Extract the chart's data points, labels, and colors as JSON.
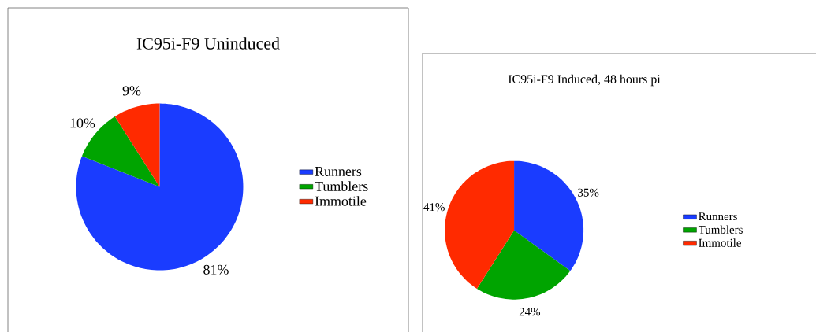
{
  "chart_data": [
    {
      "type": "pie",
      "title": "IC95i-F9 Uninduced",
      "categories": [
        "Runners",
        "Tumblers",
        "Immotile"
      ],
      "values": [
        81,
        10,
        9
      ],
      "value_labels": [
        "81%",
        "10%",
        "9%"
      ],
      "colors": [
        "#1a3cff",
        "#00a400",
        "#ff2a00"
      ],
      "legend": "right"
    },
    {
      "type": "pie",
      "title": "IC95i-F9 Induced, 48 hours pi",
      "categories": [
        "Runners",
        "Tumblers",
        "Immotile"
      ],
      "values": [
        35,
        24,
        41
      ],
      "value_labels": [
        "35%",
        "24%",
        "41%"
      ],
      "colors": [
        "#1a3cff",
        "#00a400",
        "#ff2a00"
      ],
      "legend": "right"
    }
  ]
}
